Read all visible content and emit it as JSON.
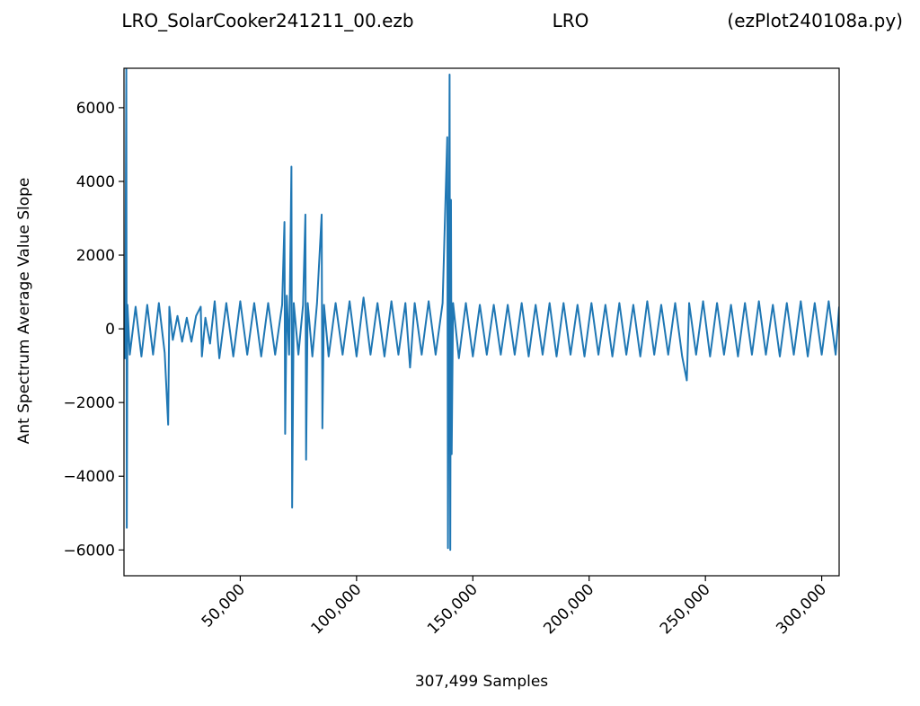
{
  "chart_data": {
    "type": "line",
    "title": [
      "LRO_SolarCooker241211_00.ezb",
      "LRO",
      "(ezPlot240108a.py)"
    ],
    "x_label": "307,499 Samples",
    "y_label": "Ant Spectrum Average Value Slope",
    "x": [
      0,
      500,
      1000,
      1200,
      1500,
      2500,
      5000,
      7500,
      10000,
      12500,
      15000,
      17500,
      19000,
      19500,
      21000,
      23000,
      25000,
      27000,
      29000,
      31000,
      33000,
      33500,
      35000,
      37000,
      39000,
      41000,
      44000,
      47000,
      50000,
      53000,
      56000,
      59000,
      62000,
      65000,
      68000,
      69000,
      69300,
      70000,
      71000,
      72000,
      72300,
      73000,
      75000,
      77000,
      78000,
      78300,
      79000,
      81000,
      83000,
      85000,
      85300,
      86000,
      88000,
      91000,
      94000,
      97000,
      100000,
      103000,
      106000,
      109000,
      112000,
      115000,
      118000,
      121000,
      123000,
      125000,
      128000,
      131000,
      134000,
      137000,
      139000,
      139300,
      139700,
      140000,
      140300,
      140600,
      140900,
      141500,
      144000,
      147000,
      150000,
      153000,
      156000,
      159000,
      162000,
      165000,
      168000,
      171000,
      174000,
      177000,
      180000,
      183000,
      186000,
      189000,
      192000,
      195000,
      198000,
      201000,
      204000,
      207000,
      210000,
      213000,
      216000,
      219000,
      222000,
      225000,
      228000,
      231000,
      234000,
      237000,
      240000,
      242000,
      243000,
      246000,
      249000,
      252000,
      255000,
      258000,
      261000,
      264000,
      267000,
      270000,
      273000,
      276000,
      279000,
      282000,
      285000,
      288000,
      291000,
      294000,
      297000,
      300000,
      303000,
      306000,
      307499
    ],
    "series": [
      {
        "color": "#1f77b4",
        "values": [
          400,
          -800,
          7050,
          -5400,
          650,
          -700,
          600,
          -750,
          650,
          -700,
          700,
          -650,
          -2600,
          600,
          -300,
          350,
          -350,
          300,
          -350,
          350,
          600,
          -750,
          300,
          -400,
          750,
          -800,
          700,
          -750,
          750,
          -700,
          700,
          -750,
          700,
          -700,
          650,
          2900,
          -2850,
          900,
          -700,
          4400,
          -4850,
          700,
          -700,
          650,
          3100,
          -3550,
          700,
          -750,
          700,
          3100,
          -2700,
          650,
          -750,
          700,
          -700,
          750,
          -750,
          850,
          -700,
          700,
          -750,
          750,
          -700,
          700,
          -1050,
          700,
          -700,
          750,
          -700,
          700,
          5200,
          -5950,
          1000,
          6900,
          -6000,
          3500,
          -3400,
          700,
          -800,
          700,
          -750,
          650,
          -700,
          650,
          -700,
          650,
          -700,
          700,
          -750,
          650,
          -700,
          700,
          -750,
          700,
          -700,
          650,
          -750,
          700,
          -700,
          650,
          -750,
          700,
          -700,
          650,
          -750,
          750,
          -700,
          650,
          -700,
          700,
          -750,
          -1400,
          700,
          -700,
          750,
          -750,
          700,
          -700,
          650,
          -750,
          700,
          -700,
          750,
          -700,
          650,
          -750,
          700,
          -700,
          750,
          -750,
          700,
          -700,
          750,
          -700,
          600
        ]
      }
    ],
    "xlim": [
      0,
      307499
    ],
    "ylim": [
      -6700,
      7070
    ],
    "xticks": [
      {
        "value": 50000,
        "label": "50,000"
      },
      {
        "value": 100000,
        "label": "100,000"
      },
      {
        "value": 150000,
        "label": "150,000"
      },
      {
        "value": 200000,
        "label": "200,000"
      },
      {
        "value": 250000,
        "label": "250,000"
      },
      {
        "value": 300000,
        "label": "300,000"
      }
    ],
    "yticks": [
      {
        "value": -6000,
        "label": "−6000"
      },
      {
        "value": -4000,
        "label": "−4000"
      },
      {
        "value": -2000,
        "label": "−2000"
      },
      0,
      2000,
      4000,
      6000
    ]
  }
}
